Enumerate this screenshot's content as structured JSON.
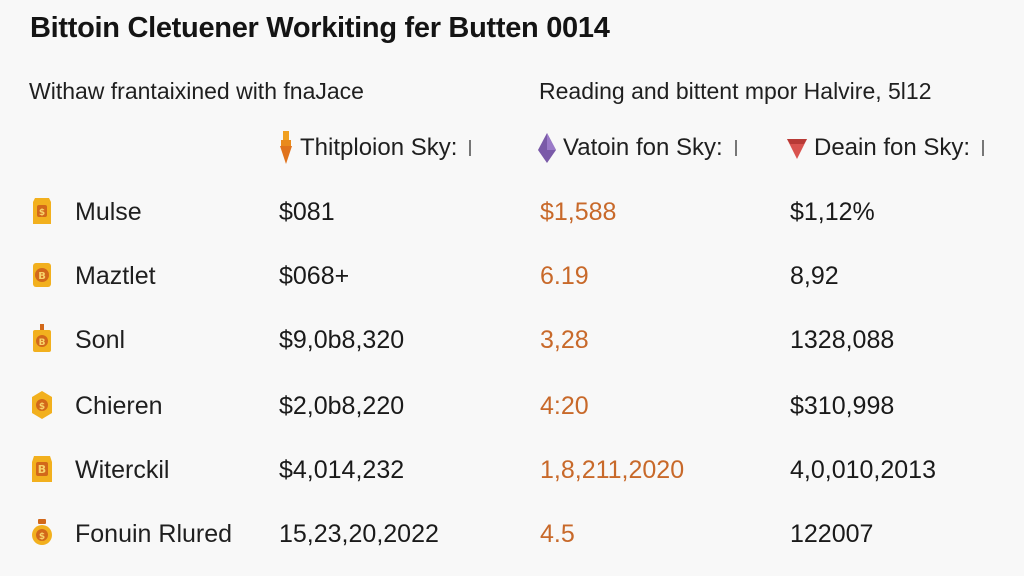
{
  "header": {
    "title": "Bittoin Cletuener Workiting fer Butten 0014",
    "subtitle_left": "Withaw frantaixined with fnaJace",
    "subtitle_right": "Reading and bittent mpor Halvire, 5l12"
  },
  "columns": [
    {
      "label": "Thitploion Sky:",
      "icon": "orange-pin-icon",
      "color": "#e0871f"
    },
    {
      "label": "Vatoin fon Sky:",
      "icon": "purple-diamond-icon",
      "color": "#7a5aa8"
    },
    {
      "label": "Deain fon Sky:",
      "icon": "red-diamond-icon",
      "color": "#d9534f"
    }
  ],
  "rows": [
    {
      "name": "Mulse",
      "v1": "$081",
      "v2": "$1,588",
      "v3": "$1,12%",
      "icon": "bitcoin-coin-icon"
    },
    {
      "name": "Maztlet",
      "v1": "$068+",
      "v2": "6.19",
      "v3": "8,92",
      "icon": "bitcoin-coin-icon"
    },
    {
      "name": "Sonl",
      "v1": "$9,0b8,320",
      "v2": "3,28",
      "v3": "1328,088",
      "icon": "bitcoin-coin-icon"
    },
    {
      "name": "Chieren",
      "v1": "$2,0b8,220",
      "v2": "4:20",
      "v3": "$310,998",
      "icon": "bitcoin-coin-icon"
    },
    {
      "name": "Witerckil",
      "v1": "$4,014,232",
      "v2": "1,8,211,2020",
      "v3": "4,0,010,2013",
      "icon": "bitcoin-coin-icon"
    },
    {
      "name": "Fonuin Rlured",
      "v1": "15,23,20,2022",
      "v2": "4.5",
      "v3": "122007",
      "icon": "bitcoin-coin-icon"
    }
  ],
  "colors": {
    "accent_orange": "#c8692a",
    "coin_gold": "#f2b01e",
    "coin_dark": "#d2681a"
  }
}
